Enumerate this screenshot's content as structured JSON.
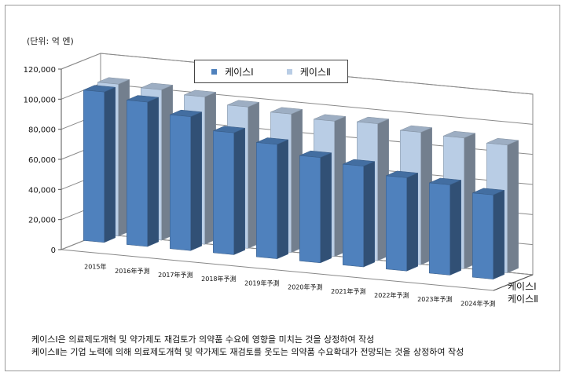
{
  "chart_data": {
    "type": "bar",
    "subtype": "3d-clustered-column",
    "unit_label": "(단위: 억 엔)",
    "categories": [
      "2015年",
      "2016年予測",
      "2017年予測",
      "2018年予測",
      "2019年予測",
      "2020年予測",
      "2021年予測",
      "2022年予測",
      "2023年予測",
      "2024年予測"
    ],
    "series": [
      {
        "name": "케이스Ⅰ",
        "color": "#4f81bd",
        "values": [
          100000,
          96000,
          89000,
          81000,
          76000,
          70000,
          67000,
          62000,
          60000,
          56000
        ]
      },
      {
        "name": "케이스Ⅱ",
        "color": "#b9cde5",
        "values": [
          101000,
          100000,
          98000,
          94000,
          92000,
          90000,
          91000,
          88000,
          87000,
          85000
        ]
      }
    ],
    "y_ticks": [
      "0",
      "20,000",
      "40,000",
      "60,000",
      "80,000",
      "100,000",
      "120,000"
    ],
    "ylim": [
      0,
      120000
    ],
    "grid": true,
    "legend_position": "top"
  },
  "notes": [
    "케이스Ⅰ은 의료제도개혁 및 약가제도 재검토가 의약품 수요에 영향을 미치는 것을 상정하여 작성",
    "케이스Ⅱ는 기업 노력에 의해 의료제도개혁 및 약가제도 재검토를 웃도는 의약품 수요확대가 전망되는 것을 상정하여 작성"
  ]
}
